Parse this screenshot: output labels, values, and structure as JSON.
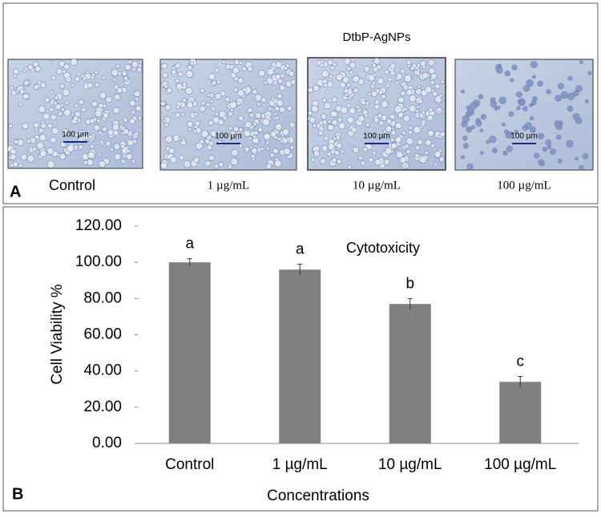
{
  "panel_a": {
    "label": "A",
    "group_title": "DtbP-AgNPs",
    "images": [
      {
        "label": "Control",
        "scale_bar": "100 µm"
      },
      {
        "label": "1 µg/mL",
        "scale_bar": "100 µm"
      },
      {
        "label": "10 µg/mL",
        "scale_bar": "100 µm"
      },
      {
        "label": "100 µg/mL",
        "scale_bar": "100 µm"
      }
    ]
  },
  "chart_data": {
    "type": "bar",
    "panel_label": "B",
    "title": "Cytotoxicity",
    "x_label": "Concentrations",
    "y_label": "Cell Viability %",
    "categories": [
      "Control",
      "1 µg/mL",
      "10 µg/mL",
      "100 µg/mL"
    ],
    "values": [
      100,
      96,
      77,
      34
    ],
    "errors": [
      2,
      3,
      3,
      3
    ],
    "group_labels": [
      "a",
      "a",
      "b",
      "c"
    ],
    "color": "#808080",
    "ylim": [
      0,
      120
    ],
    "yticks": [
      {
        "value": 0,
        "label": "0.00"
      },
      {
        "value": 20,
        "label": "20.00"
      },
      {
        "value": 40,
        "label": "40.00"
      },
      {
        "value": 60,
        "label": "60.00"
      },
      {
        "value": 80,
        "label": "80.00"
      },
      {
        "value": 100,
        "label": "100.00"
      },
      {
        "value": 120,
        "label": "120.00"
      }
    ]
  }
}
